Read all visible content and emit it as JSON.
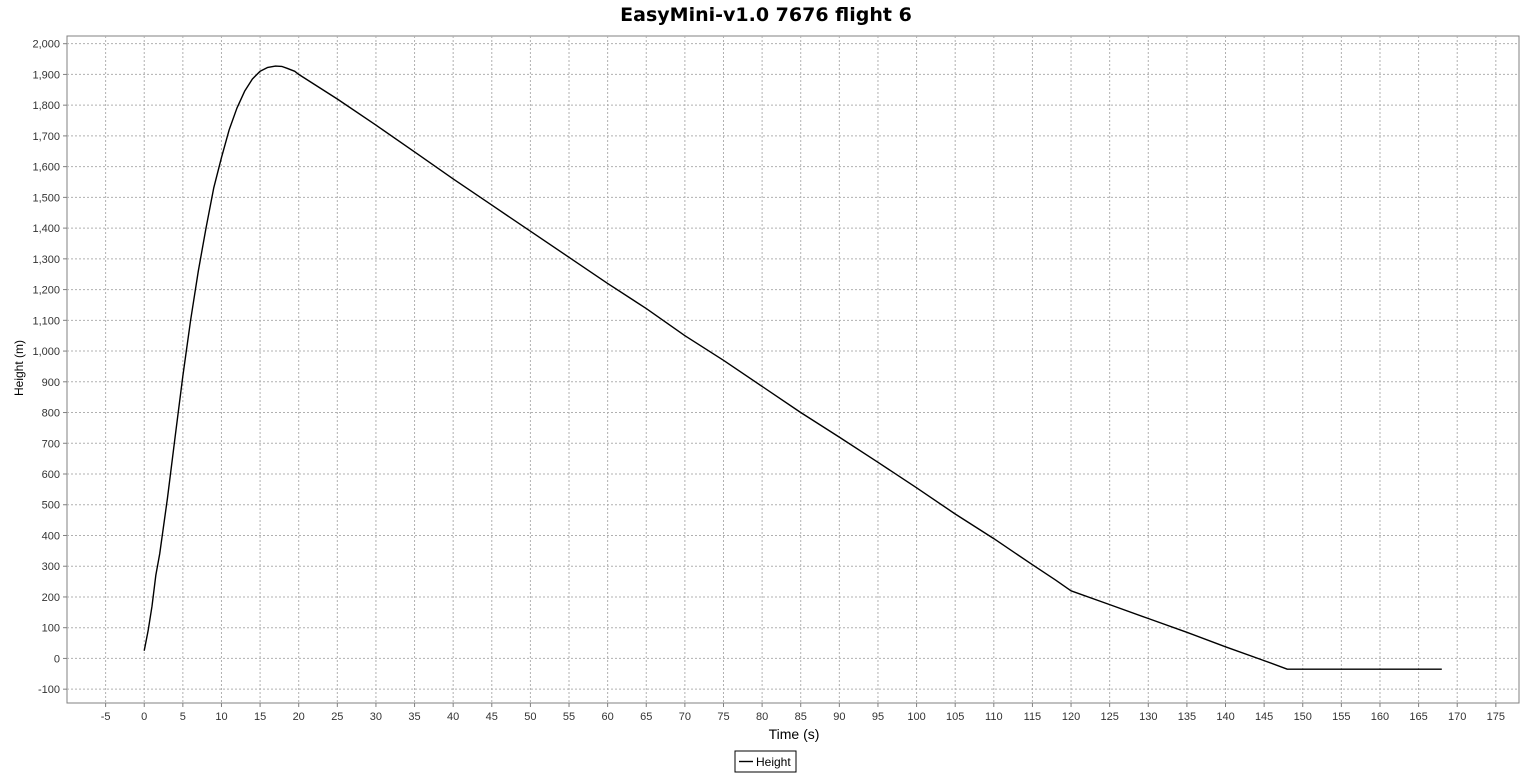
{
  "chart_data": {
    "type": "line",
    "title": "EasyMini-v1.0 7676 flight 6",
    "xlabel": "Time (s)",
    "ylabel": "Height (m)",
    "xlim": [
      -10,
      178
    ],
    "ylim": [
      -145,
      2025
    ],
    "x_ticks": [
      -5,
      0,
      5,
      10,
      15,
      20,
      25,
      30,
      35,
      40,
      45,
      50,
      55,
      60,
      65,
      70,
      75,
      80,
      85,
      90,
      95,
      100,
      105,
      110,
      115,
      120,
      125,
      130,
      135,
      140,
      145,
      150,
      155,
      160,
      165,
      170,
      175
    ],
    "y_ticks": [
      -100,
      0,
      100,
      200,
      300,
      400,
      500,
      600,
      700,
      800,
      900,
      1000,
      1100,
      1200,
      1300,
      1400,
      1500,
      1600,
      1700,
      1800,
      1900,
      2000
    ],
    "y_tick_labels": [
      "-100",
      "0",
      "100",
      "200",
      "300",
      "400",
      "500",
      "600",
      "700",
      "800",
      "900",
      "1,000",
      "1,100",
      "1,200",
      "1,300",
      "1,400",
      "1,500",
      "1,600",
      "1,700",
      "1,800",
      "1,900",
      "2,000"
    ],
    "grid": true,
    "legend_position": "bottom-center",
    "series": [
      {
        "name": "Height",
        "color": "#000000",
        "x": [
          0,
          0.5,
          1,
          1.5,
          2,
          3,
          4,
          5,
          6,
          7,
          8,
          9,
          10,
          11,
          12,
          13,
          14,
          15,
          16,
          17,
          17.8,
          18.5,
          19.5,
          20,
          25,
          30,
          35,
          40,
          45,
          50,
          55,
          60,
          65,
          70,
          75,
          80,
          85,
          90,
          95,
          100,
          105,
          110,
          115,
          118,
          120,
          125,
          130,
          135,
          140,
          145,
          148,
          150,
          155,
          160,
          165,
          168
        ],
        "values": [
          25,
          90,
          170,
          270,
          340,
          520,
          720,
          920,
          1100,
          1260,
          1400,
          1530,
          1630,
          1720,
          1790,
          1845,
          1885,
          1910,
          1923,
          1927,
          1926,
          1920,
          1910,
          1900,
          1820,
          1735,
          1648,
          1560,
          1475,
          1390,
          1305,
          1220,
          1138,
          1050,
          970,
          885,
          800,
          720,
          638,
          555,
          470,
          390,
          305,
          255,
          220,
          175,
          130,
          85,
          38,
          -7,
          -35,
          -35,
          -35,
          -35,
          -35,
          -35
        ]
      }
    ]
  }
}
